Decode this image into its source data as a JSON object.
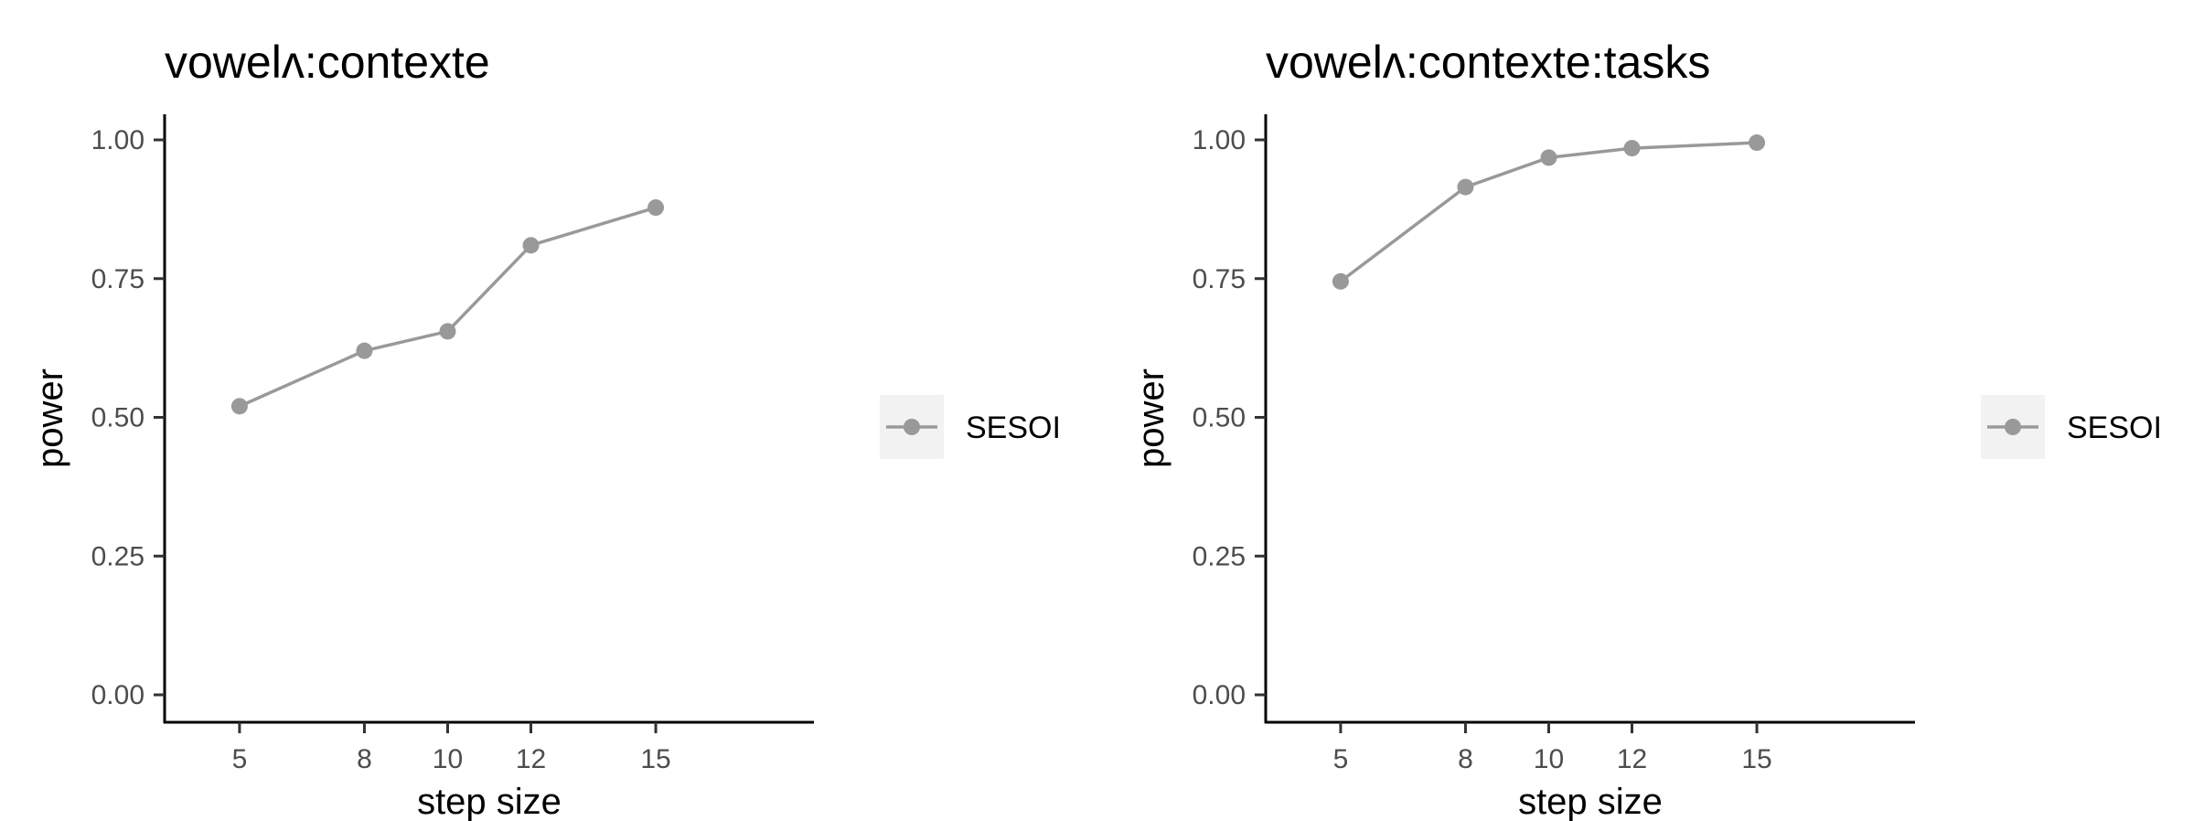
{
  "chart_data": [
    {
      "type": "line",
      "title": "vowelʌ:contexte",
      "xlabel": "step size",
      "ylabel": "power",
      "x": [
        5,
        8,
        10,
        12,
        15
      ],
      "x_ticks": [
        "5",
        "8",
        "10",
        "12",
        "15"
      ],
      "y_ticks": [
        "0.00",
        "0.25",
        "0.50",
        "0.75",
        "1.00"
      ],
      "ylim": [
        0,
        1
      ],
      "xlim": [
        3.2,
        18.8
      ],
      "grid": false,
      "legend_position": "right",
      "series": [
        {
          "name": "SESOI",
          "color": "#999999",
          "values": [
            0.52,
            0.62,
            0.655,
            0.81,
            0.878
          ]
        }
      ]
    },
    {
      "type": "line",
      "title": "vowelʌ:contexte:tasks",
      "xlabel": "step size",
      "ylabel": "power",
      "x": [
        5,
        8,
        10,
        12,
        15
      ],
      "x_ticks": [
        "5",
        "8",
        "10",
        "12",
        "15"
      ],
      "y_ticks": [
        "0.00",
        "0.25",
        "0.50",
        "0.75",
        "1.00"
      ],
      "ylim": [
        0,
        1
      ],
      "xlim": [
        3.2,
        18.8
      ],
      "grid": false,
      "legend_position": "right",
      "series": [
        {
          "name": "SESOI",
          "color": "#999999",
          "values": [
            0.745,
            0.915,
            0.968,
            0.985,
            0.995
          ]
        }
      ]
    }
  ]
}
